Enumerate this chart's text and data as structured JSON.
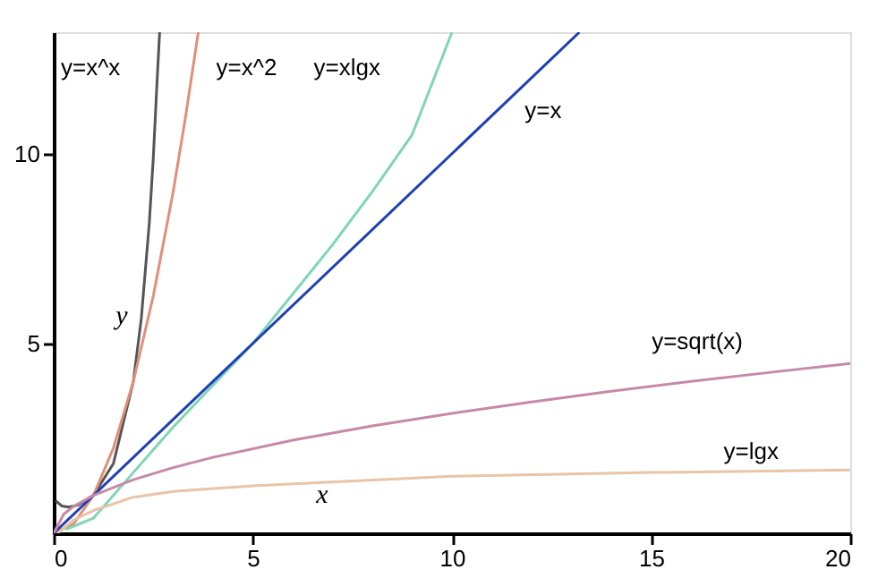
{
  "chart_data": {
    "type": "line",
    "xlim": [
      0,
      20
    ],
    "ylim": [
      0,
      13.2
    ],
    "xticks": [
      0,
      5,
      10,
      15,
      20
    ],
    "yticks": [
      5,
      10
    ],
    "grid": false,
    "marker": "none",
    "line_style": "solid",
    "series": [
      {
        "name": "y=x^x",
        "color": "#555555",
        "x": [
          0.05,
          0.2,
          0.37,
          0.6,
          1,
          1.5,
          2,
          2.2,
          2.4,
          2.5,
          2.6,
          2.66
        ],
        "values": [
          0.86,
          0.72,
          0.69,
          0.74,
          1,
          1.84,
          4,
          5.66,
          8.17,
          9.88,
          12,
          13.2
        ]
      },
      {
        "name": "y=x^2",
        "color": "#e0907a",
        "x": [
          0,
          0.5,
          1,
          1.5,
          2,
          2.5,
          3,
          3.3,
          3.63
        ],
        "values": [
          0,
          0.25,
          1,
          2.25,
          4,
          6.25,
          9,
          10.9,
          13.2
        ]
      },
      {
        "name": "y=xlgx",
        "color": "#7fd6b6",
        "x": [
          0.3,
          1,
          2,
          3,
          4,
          5,
          6,
          7,
          8,
          9,
          10
        ],
        "values": [
          0.1,
          0.4,
          1.6,
          2.8,
          3.9,
          5,
          6.3,
          7.6,
          9,
          10.5,
          13.2
        ]
      },
      {
        "name": "y=x",
        "color": "#1f3fb5",
        "x": [
          0,
          13.2
        ],
        "values": [
          0,
          13.2
        ]
      },
      {
        "name": "y=sqrt(x)",
        "color": "#c58aa8",
        "x": [
          0,
          0.25,
          0.5,
          1,
          2,
          3,
          4,
          6,
          8,
          10,
          12,
          14,
          16,
          18,
          20
        ],
        "values": [
          0,
          0.5,
          0.71,
          1,
          1.41,
          1.73,
          2,
          2.45,
          2.83,
          3.16,
          3.46,
          3.74,
          4,
          4.24,
          4.47
        ]
      },
      {
        "name": "y=lgx",
        "color": "#e8c4a8",
        "x": [
          0.1,
          0.5,
          1,
          2,
          3,
          5,
          10,
          15,
          20
        ],
        "values": [
          0,
          0.35,
          0.6,
          0.95,
          1.1,
          1.25,
          1.5,
          1.6,
          1.67
        ]
      }
    ],
    "annotations": [
      "y",
      "x"
    ]
  }
}
